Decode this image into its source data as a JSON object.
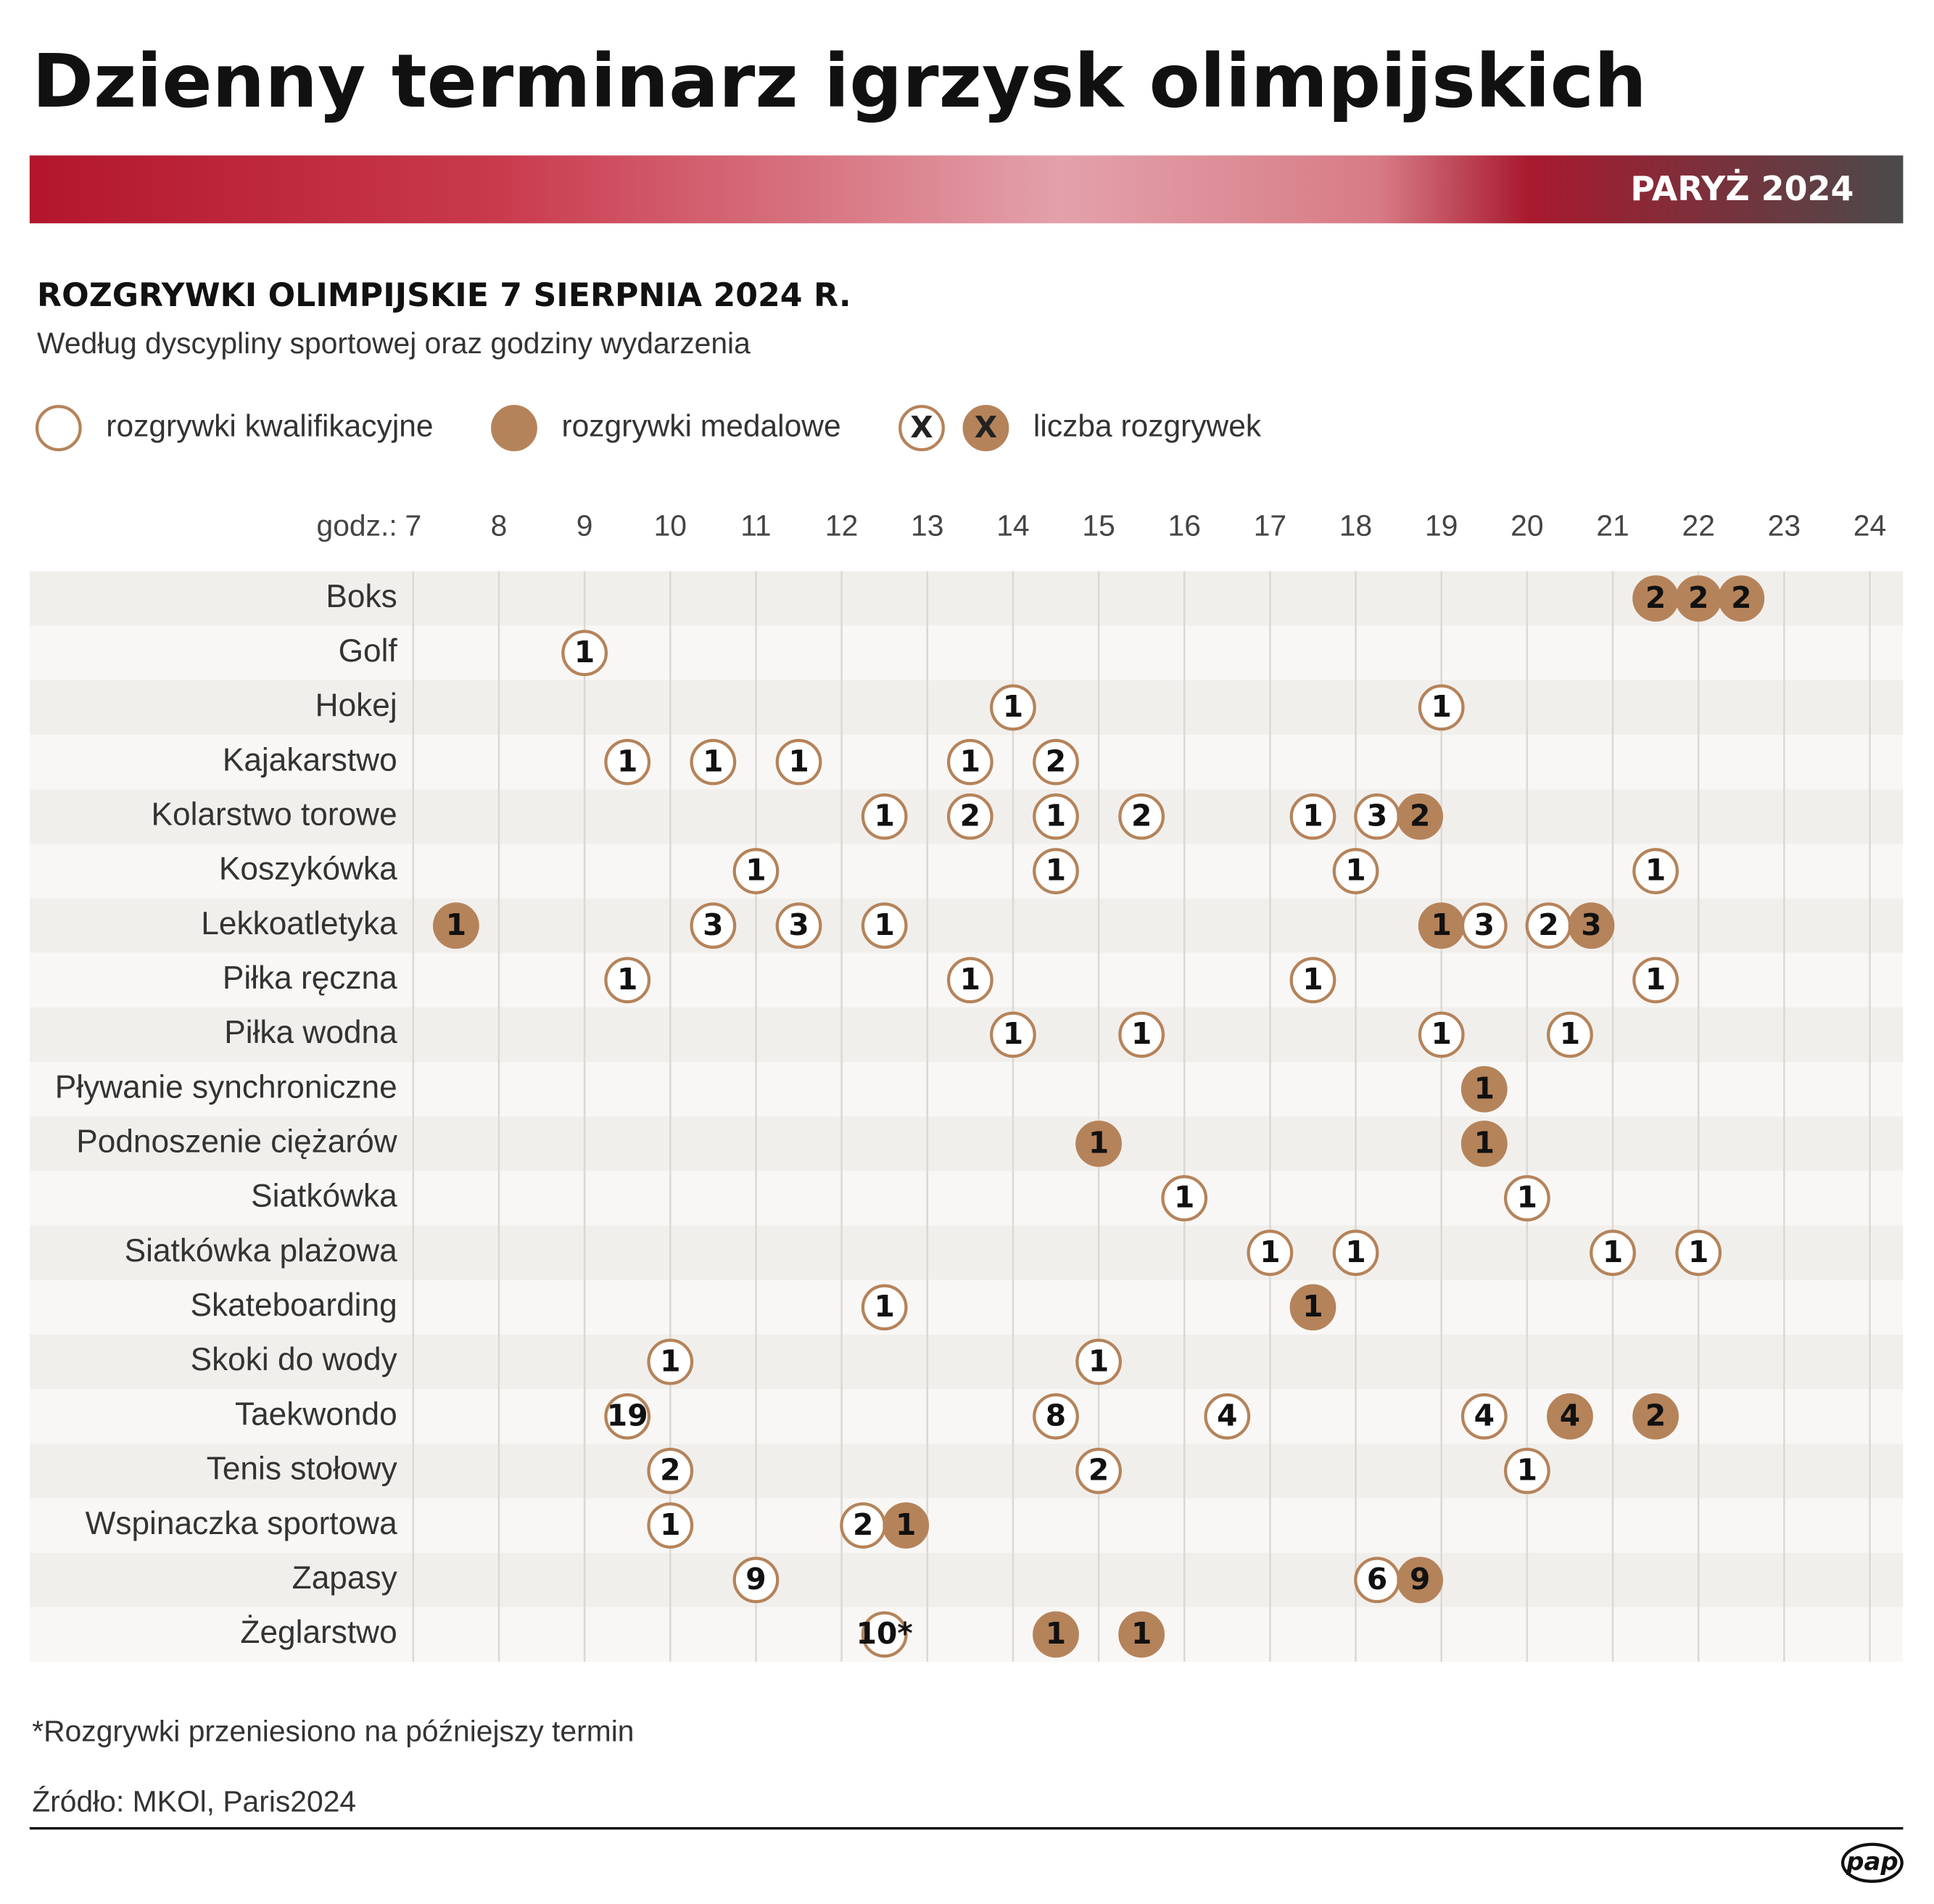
{
  "chart_data": {
    "type": "dot-timeline",
    "title": "Dzienny terminarz igrzysk olimpijskich",
    "banner_label": "PARYŻ 2024",
    "subtitle": "ROZGRYWKI OLIMPIJSKIE 7 SIERPNIA 2024 R.",
    "description": "Według dyscypliny sportowej oraz godziny wydarzenia",
    "legend": [
      {
        "label": "rozgrywki kwalifikacyjne",
        "medal": false
      },
      {
        "label": "rozgrywki medalowe",
        "medal": true
      },
      {
        "label": "liczba rozgrywek",
        "symbol": "X"
      }
    ],
    "x_label": "godz.:",
    "xlim": [
      7,
      24
    ],
    "xticks": [
      7,
      8,
      9,
      10,
      11,
      12,
      13,
      14,
      15,
      16,
      17,
      18,
      19,
      20,
      21,
      22,
      23,
      24
    ],
    "grid": true,
    "color": "#b5835a",
    "rows": [
      {
        "name": "Boks",
        "events": [
          {
            "x": 21.5,
            "value": 2,
            "medal": true
          },
          {
            "x": 22,
            "value": 2,
            "medal": true
          },
          {
            "x": 22.5,
            "value": 2,
            "medal": true
          }
        ]
      },
      {
        "name": "Golf",
        "events": [
          {
            "x": 9,
            "value": 1,
            "medal": false
          }
        ]
      },
      {
        "name": "Hokej",
        "events": [
          {
            "x": 14,
            "value": 1,
            "medal": false
          },
          {
            "x": 19,
            "value": 1,
            "medal": false
          }
        ]
      },
      {
        "name": "Kajakarstwo",
        "events": [
          {
            "x": 9.5,
            "value": 1,
            "medal": false
          },
          {
            "x": 10.5,
            "value": 1,
            "medal": false
          },
          {
            "x": 11.5,
            "value": 1,
            "medal": false
          },
          {
            "x": 13.5,
            "value": 1,
            "medal": false
          },
          {
            "x": 14.5,
            "value": 2,
            "medal": false
          }
        ]
      },
      {
        "name": "Kolarstwo torowe",
        "events": [
          {
            "x": 12.5,
            "value": 1,
            "medal": false
          },
          {
            "x": 13.5,
            "value": 2,
            "medal": false
          },
          {
            "x": 14.5,
            "value": 1,
            "medal": false
          },
          {
            "x": 15.5,
            "value": 2,
            "medal": false
          },
          {
            "x": 17.5,
            "value": 1,
            "medal": false
          },
          {
            "x": 18.25,
            "value": 3,
            "medal": false
          },
          {
            "x": 18.75,
            "value": 2,
            "medal": true
          }
        ]
      },
      {
        "name": "Koszykówka",
        "events": [
          {
            "x": 11,
            "value": 1,
            "medal": false
          },
          {
            "x": 14.5,
            "value": 1,
            "medal": false
          },
          {
            "x": 18,
            "value": 1,
            "medal": false
          },
          {
            "x": 21.5,
            "value": 1,
            "medal": false
          }
        ]
      },
      {
        "name": "Lekkoatletyka",
        "events": [
          {
            "x": 7.5,
            "value": 1,
            "medal": true
          },
          {
            "x": 10.5,
            "value": 3,
            "medal": false
          },
          {
            "x": 11.5,
            "value": 3,
            "medal": false
          },
          {
            "x": 12.5,
            "value": 1,
            "medal": false
          },
          {
            "x": 19,
            "value": 1,
            "medal": true
          },
          {
            "x": 19.5,
            "value": 3,
            "medal": false
          },
          {
            "x": 20.25,
            "value": 2,
            "medal": false
          },
          {
            "x": 20.75,
            "value": 3,
            "medal": true
          }
        ]
      },
      {
        "name": "Piłka ręczna",
        "events": [
          {
            "x": 9.5,
            "value": 1,
            "medal": false
          },
          {
            "x": 13.5,
            "value": 1,
            "medal": false
          },
          {
            "x": 17.5,
            "value": 1,
            "medal": false
          },
          {
            "x": 21.5,
            "value": 1,
            "medal": false
          }
        ]
      },
      {
        "name": "Piłka wodna",
        "events": [
          {
            "x": 14,
            "value": 1,
            "medal": false
          },
          {
            "x": 15.5,
            "value": 1,
            "medal": false
          },
          {
            "x": 19,
            "value": 1,
            "medal": false
          },
          {
            "x": 20.5,
            "value": 1,
            "medal": false
          }
        ]
      },
      {
        "name": "Pływanie synchroniczne",
        "events": [
          {
            "x": 19.5,
            "value": 1,
            "medal": true
          }
        ]
      },
      {
        "name": "Podnoszenie ciężarów",
        "events": [
          {
            "x": 15,
            "value": 1,
            "medal": true
          },
          {
            "x": 19.5,
            "value": 1,
            "medal": true
          }
        ]
      },
      {
        "name": "Siatkówka",
        "events": [
          {
            "x": 16,
            "value": 1,
            "medal": false
          },
          {
            "x": 20,
            "value": 1,
            "medal": false
          }
        ]
      },
      {
        "name": "Siatkówka plażowa",
        "events": [
          {
            "x": 17,
            "value": 1,
            "medal": false
          },
          {
            "x": 18,
            "value": 1,
            "medal": false
          },
          {
            "x": 21,
            "value": 1,
            "medal": false
          },
          {
            "x": 22,
            "value": 1,
            "medal": false
          }
        ]
      },
      {
        "name": "Skateboarding",
        "events": [
          {
            "x": 12.5,
            "value": 1,
            "medal": false
          },
          {
            "x": 17.5,
            "value": 1,
            "medal": true
          }
        ]
      },
      {
        "name": "Skoki do wody",
        "events": [
          {
            "x": 10,
            "value": 1,
            "medal": false
          },
          {
            "x": 15,
            "value": 1,
            "medal": false
          }
        ]
      },
      {
        "name": "Taekwondo",
        "events": [
          {
            "x": 9.5,
            "value": 19,
            "medal": false
          },
          {
            "x": 14.5,
            "value": 8,
            "medal": false
          },
          {
            "x": 16.5,
            "value": 4,
            "medal": false
          },
          {
            "x": 19.5,
            "value": 4,
            "medal": false
          },
          {
            "x": 20.5,
            "value": 4,
            "medal": true
          },
          {
            "x": 21.5,
            "value": 2,
            "medal": true
          }
        ]
      },
      {
        "name": "Tenis stołowy",
        "events": [
          {
            "x": 10,
            "value": 2,
            "medal": false
          },
          {
            "x": 15,
            "value": 2,
            "medal": false
          },
          {
            "x": 20,
            "value": 1,
            "medal": false
          }
        ]
      },
      {
        "name": "Wspinaczka sportowa",
        "events": [
          {
            "x": 10,
            "value": 1,
            "medal": false
          },
          {
            "x": 12.25,
            "value": 2,
            "medal": false
          },
          {
            "x": 12.75,
            "value": 1,
            "medal": true
          }
        ]
      },
      {
        "name": "Zapasy",
        "events": [
          {
            "x": 11,
            "value": 9,
            "medal": false
          },
          {
            "x": 18.25,
            "value": 6,
            "medal": false
          },
          {
            "x": 18.75,
            "value": 9,
            "medal": true
          }
        ]
      },
      {
        "name": "Żeglarstwo",
        "events": [
          {
            "x": 12.5,
            "value": 10,
            "value_label": "10*",
            "medal": false
          },
          {
            "x": 14.5,
            "value": 1,
            "medal": true
          },
          {
            "x": 15.5,
            "value": 1,
            "medal": true
          }
        ]
      }
    ],
    "footnote": "*Rozgrywki przeniesiono na późniejszy termin",
    "source": "Źródło: MKOl, Paris2024",
    "logo": "pap"
  }
}
